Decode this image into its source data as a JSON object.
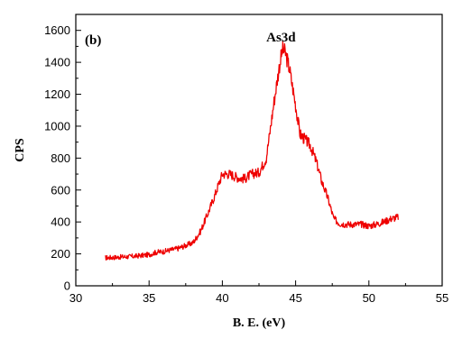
{
  "chart_data": {
    "type": "line",
    "panel_label": "(b)",
    "annotation": "As3d",
    "xlabel": "B. E. (eV)",
    "ylabel": "CPS",
    "xlim": [
      30,
      55
    ],
    "ylim": [
      0,
      1700
    ],
    "xticks": [
      30,
      35,
      40,
      45,
      50,
      55
    ],
    "yticks": [
      0,
      200,
      400,
      600,
      800,
      1000,
      1200,
      1400,
      1600
    ],
    "line_color": "#ee0000",
    "series": [
      {
        "x": [
          32.0,
          33.0,
          34.0,
          35.0,
          35.5,
          36.0,
          37.0,
          38.0,
          38.5,
          39.0,
          39.5,
          39.8,
          40.0,
          40.5,
          41.0,
          41.5,
          42.0,
          42.5,
          43.0,
          43.3,
          43.6,
          43.9,
          44.1,
          44.3,
          44.6,
          45.0,
          45.3,
          45.6,
          46.0,
          46.4,
          46.8,
          47.2,
          47.6,
          48.0,
          48.5,
          49.0,
          49.5,
          50.0,
          50.5,
          51.0,
          51.5,
          52.0
        ],
        "y": [
          175,
          180,
          185,
          195,
          210,
          215,
          235,
          270,
          340,
          450,
          570,
          650,
          700,
          700,
          680,
          670,
          700,
          710,
          800,
          1000,
          1200,
          1380,
          1480,
          1460,
          1350,
          1130,
          950,
          920,
          880,
          780,
          650,
          550,
          420,
          390,
          385,
          385,
          385,
          375,
          385,
          400,
          420,
          430
        ]
      }
    ]
  }
}
